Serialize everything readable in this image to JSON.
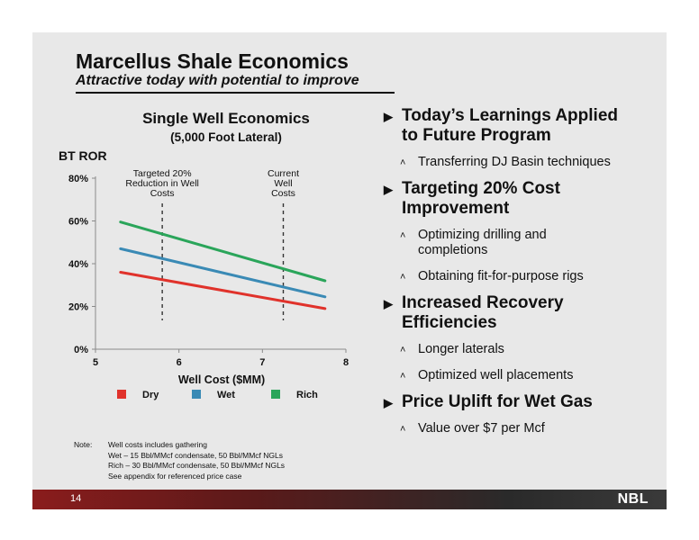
{
  "title": "Marcellus Shale Economics",
  "subtitle": "Attractive today with potential to improve",
  "chart_data": {
    "type": "line",
    "title": "Single Well Economics",
    "subtitle": "(5,000 Foot Lateral)",
    "ylabel": "BT ROR",
    "xlabel": "Well Cost ($MM)",
    "xlim": [
      5,
      8
    ],
    "ylim": [
      0,
      80
    ],
    "xticks": [
      "5",
      "6",
      "7",
      "8"
    ],
    "yticks": [
      "0%",
      "20%",
      "40%",
      "60%",
      "80%"
    ],
    "series": [
      {
        "name": "Dry",
        "color": "#e0322b",
        "x": [
          5.3,
          7.75
        ],
        "y": [
          36,
          19
        ]
      },
      {
        "name": "Wet",
        "color": "#3a8ab5",
        "x": [
          5.3,
          7.75
        ],
        "y": [
          47,
          24.5
        ]
      },
      {
        "name": "Rich",
        "color": "#2aa55a",
        "x": [
          5.3,
          7.75
        ],
        "y": [
          59.5,
          32
        ]
      }
    ],
    "annotations": [
      {
        "x": 5.8,
        "lines": [
          "Targeted 20%",
          "Reduction in Well",
          "Costs"
        ]
      },
      {
        "x": 7.25,
        "lines": [
          "Current",
          "Well",
          "Costs"
        ]
      }
    ],
    "legend_placement": "bottom",
    "grid": false
  },
  "bullets": [
    {
      "heading": [
        "Today’s Learnings Applied",
        "to Future Program"
      ],
      "items": [
        [
          "Transferring DJ Basin techniques"
        ]
      ]
    },
    {
      "heading": [
        "Targeting 20% Cost",
        "Improvement"
      ],
      "items": [
        [
          "Optimizing drilling and",
          "completions"
        ],
        [
          "Obtaining fit-for-purpose rigs"
        ]
      ]
    },
    {
      "heading": [
        "Increased Recovery",
        "Efficiencies"
      ],
      "items": [
        [
          "Longer laterals"
        ],
        [
          "Optimized well placements"
        ]
      ]
    },
    {
      "heading": [
        "Price Uplift for Wet Gas"
      ],
      "items": [
        [
          "Value over $7 per Mcf"
        ]
      ]
    }
  ],
  "notes": {
    "label": "Note:",
    "lines": [
      "Well costs includes gathering",
      "Wet – 15 Bbl/MMcf condensate, 50 Bbl/MMcf NGLs",
      "Rich – 30 Bbl/MMcf condensate, 50 Bbl/MMcf NGLs",
      "See appendix for referenced price case"
    ]
  },
  "footer": {
    "page_number": "14",
    "logo_text": "NBL"
  }
}
